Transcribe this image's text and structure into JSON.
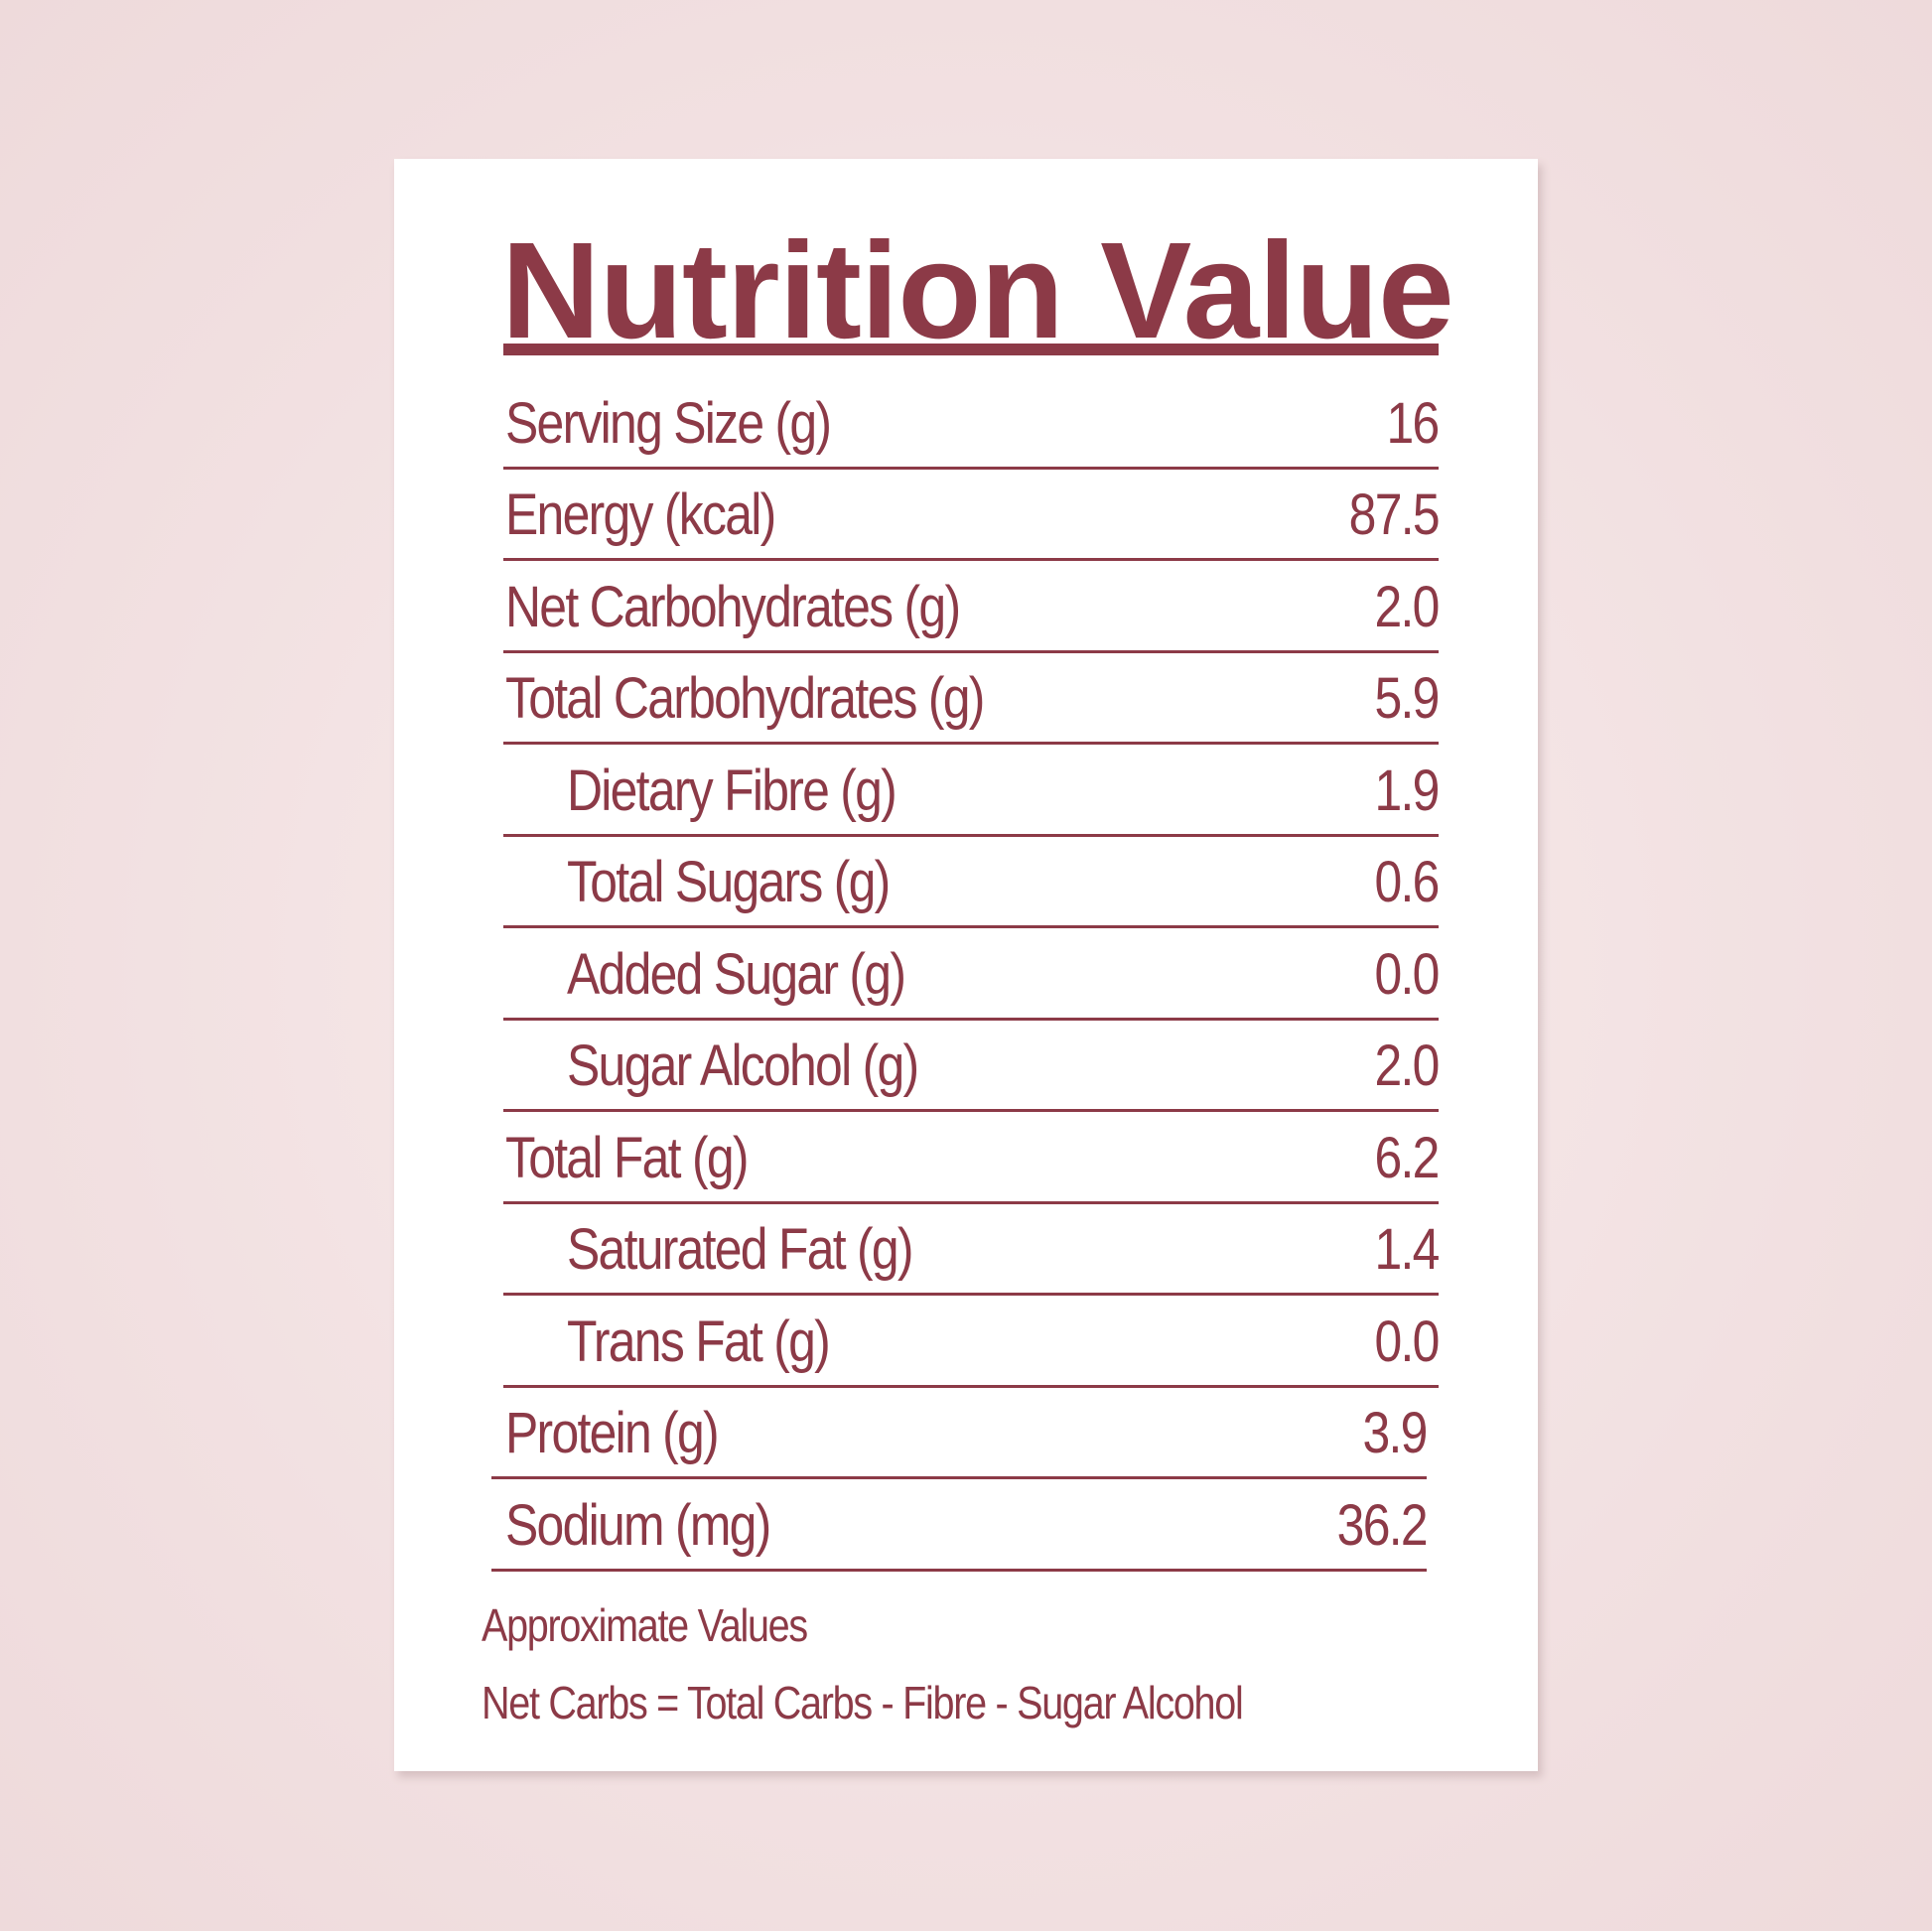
{
  "title": "Nutrition Value",
  "rows": [
    {
      "label": "Serving Size (g)",
      "value": "16"
    },
    {
      "label": "Energy (kcal)",
      "value": "87.5"
    },
    {
      "label": "Net Carbohydrates (g)",
      "value": "2.0"
    },
    {
      "label": "Total Carbohydrates (g)",
      "value": "5.9"
    },
    {
      "label": "Dietary Fibre (g)",
      "value": "1.9"
    },
    {
      "label": "Total Sugars (g)",
      "value": "0.6"
    },
    {
      "label": "Added Sugar (g)",
      "value": "0.0"
    },
    {
      "label": "Sugar Alcohol (g)",
      "value": "2.0"
    },
    {
      "label": "Total Fat (g)",
      "value": "6.2"
    },
    {
      "label": "Saturated Fat (g)",
      "value": "1.4"
    },
    {
      "label": "Trans Fat (g)",
      "value": "0.0"
    },
    {
      "label": "Protein (g)",
      "value": "3.9"
    },
    {
      "label": "Sodium (mg)",
      "value": "36.2"
    }
  ],
  "footnotes": {
    "approximate": "Approximate Values",
    "formula": "Net Carbs = Total Carbs - Fibre - Sugar Alcohol"
  },
  "colors": {
    "text": "#8c3a47",
    "background": "#f1dfe0",
    "card": "#ffffff"
  }
}
